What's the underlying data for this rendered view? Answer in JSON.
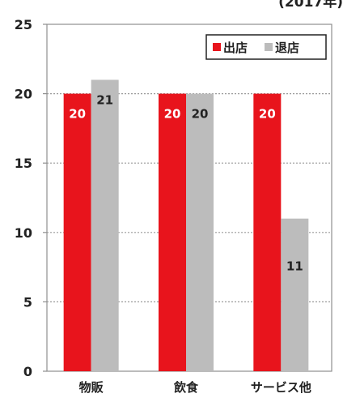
{
  "chart_data": {
    "type": "bar",
    "subtitle": "(2017年)",
    "categories": [
      "物販",
      "飲食",
      "サービス他"
    ],
    "series": [
      {
        "name": "出店",
        "values": [
          20,
          20,
          20
        ],
        "labels": [
          "20",
          "20",
          "20"
        ],
        "color": "#e8141c"
      },
      {
        "name": "退店",
        "values": [
          21,
          20,
          11
        ],
        "labels": [
          "21",
          "20",
          "11"
        ],
        "color": "#bcbcbc"
      }
    ],
    "y_ticks": [
      "0",
      "5",
      "10",
      "15",
      "20",
      "25"
    ],
    "ylim": [
      0,
      25
    ],
    "grid": true,
    "legend_position": "top-right"
  }
}
